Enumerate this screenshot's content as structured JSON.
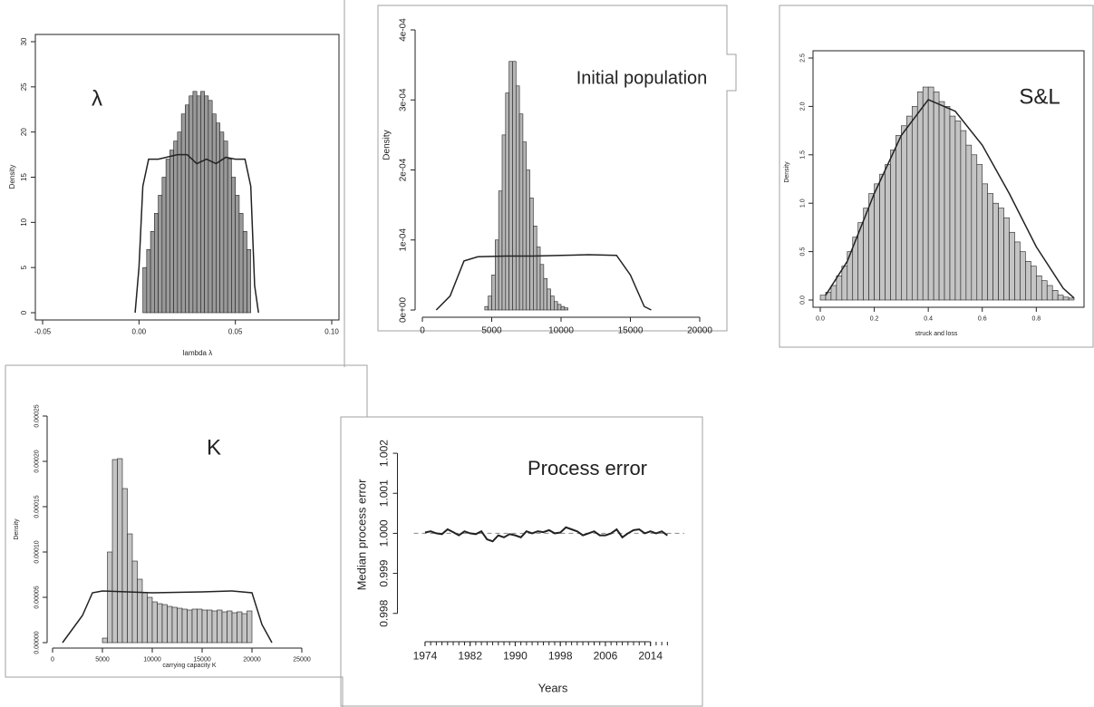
{
  "chart_data": [
    {
      "type": "histogram",
      "title": "λ",
      "x_label": "lambda λ",
      "y_label": "Density",
      "color": "#9a9a9a",
      "frame": true,
      "xlim": [
        -0.05,
        0.1
      ],
      "ylim": [
        0,
        30
      ],
      "xticks": [
        -0.05,
        {
          "value": 0,
          "label": "0.00"
        },
        0.05,
        {
          "value": 0.1,
          "label": "0.10"
        }
      ],
      "yticks": [
        0,
        5,
        10,
        15,
        20,
        25,
        30
      ],
      "bins": [
        0.002,
        0.004,
        0.006,
        0.008,
        0.01,
        0.012,
        0.014,
        0.016,
        0.018,
        0.02,
        0.022,
        0.024,
        0.026,
        0.028,
        0.03,
        0.032,
        0.034,
        0.036,
        0.038,
        0.04,
        0.042,
        0.044,
        0.046,
        0.048,
        0.05,
        0.052,
        0.054,
        0.056,
        0.058
      ],
      "values": [
        5,
        7,
        9,
        11,
        13,
        15,
        17,
        18,
        19,
        20,
        22,
        23,
        24,
        24.5,
        24,
        24.5,
        24,
        23.5,
        22,
        21,
        20,
        19,
        17,
        15,
        13,
        11,
        9,
        7
      ],
      "density_x": [
        -0.002,
        0,
        0.002,
        0.005,
        0.01,
        0.02,
        0.025,
        0.03,
        0.035,
        0.04,
        0.045,
        0.05,
        0.055,
        0.058,
        0.06,
        0.062
      ],
      "density_y": [
        0,
        5,
        14,
        17,
        17,
        17.5,
        17.5,
        16.5,
        17,
        16.5,
        17.2,
        17,
        17,
        14,
        3,
        0
      ]
    },
    {
      "type": "histogram",
      "title": "Initial population",
      "y_label": "Density",
      "color": "#b5b5b5",
      "frame": false,
      "xlim": [
        0,
        20000
      ],
      "ylim": [
        0,
        0.0004
      ],
      "xticks": [
        0,
        5000,
        10000,
        15000,
        20000
      ],
      "yticks": [
        {
          "value": 0,
          "label": "0e+00"
        },
        {
          "value": 0.0001,
          "label": "1e-04"
        },
        {
          "value": 0.0002,
          "label": "2e-04"
        },
        {
          "value": 0.0003,
          "label": "3e-04"
        },
        {
          "value": 0.0004,
          "label": "4e-04"
        }
      ],
      "bins": [
        4500,
        4750,
        5000,
        5250,
        5500,
        5750,
        6000,
        6250,
        6500,
        6750,
        7000,
        7250,
        7500,
        7750,
        8000,
        8250,
        8500,
        8750,
        9000,
        9250,
        9500,
        9750,
        10000,
        10250,
        10500
      ],
      "values": [
        5e-06,
        2e-05,
        5e-05,
        0.0001,
        0.00017,
        0.00025,
        0.00031,
        0.000355,
        0.000355,
        0.00032,
        0.00028,
        0.00024,
        0.0002,
        0.00016,
        0.00012,
        9e-05,
        6.5e-05,
        4.5e-05,
        3e-05,
        2e-05,
        1.2e-05,
        8e-06,
        5e-06,
        3e-06
      ],
      "density_x": [
        1000,
        2000,
        3000,
        4000,
        6000,
        8000,
        10000,
        12000,
        14000,
        15000,
        16000,
        16500
      ],
      "density_y": [
        0,
        2e-05,
        7e-05,
        7.6e-05,
        7.7e-05,
        7.7e-05,
        7.8e-05,
        7.9e-05,
        7.8e-05,
        5e-05,
        5e-06,
        0
      ]
    },
    {
      "type": "histogram",
      "title": "S&L",
      "x_label": "struck and loss",
      "y_label": "Density",
      "color": "#c4c4c4",
      "frame": true,
      "xlim": [
        0,
        0.95
      ],
      "ylim": [
        0,
        2.5
      ],
      "xticks": [
        {
          "value": 0,
          "label": "0.0"
        },
        0.2,
        0.4,
        0.6,
        0.8
      ],
      "yticks": [
        {
          "value": 0,
          "label": "0.0"
        },
        0.5,
        {
          "value": 1,
          "label": "1.0"
        },
        1.5,
        {
          "value": 2,
          "label": "2.0"
        },
        2.5
      ],
      "bins": [
        0,
        0.02,
        0.04,
        0.06,
        0.08,
        0.1,
        0.12,
        0.14,
        0.16,
        0.18,
        0.2,
        0.22,
        0.24,
        0.26,
        0.28,
        0.3,
        0.32,
        0.34,
        0.36,
        0.38,
        0.4,
        0.42,
        0.44,
        0.46,
        0.48,
        0.5,
        0.52,
        0.54,
        0.56,
        0.58,
        0.6,
        0.62,
        0.64,
        0.66,
        0.68,
        0.7,
        0.72,
        0.74,
        0.76,
        0.78,
        0.8,
        0.82,
        0.84,
        0.86,
        0.88,
        0.9,
        0.92,
        0.94
      ],
      "values": [
        0.05,
        0.08,
        0.15,
        0.25,
        0.35,
        0.5,
        0.65,
        0.8,
        0.95,
        1.1,
        1.2,
        1.3,
        1.4,
        1.55,
        1.7,
        1.8,
        1.9,
        2.0,
        2.15,
        2.2,
        2.2,
        2.15,
        2.05,
        2.0,
        1.9,
        1.85,
        1.75,
        1.6,
        1.5,
        1.4,
        1.2,
        1.1,
        1.0,
        0.95,
        0.85,
        0.7,
        0.6,
        0.5,
        0.4,
        0.35,
        0.25,
        0.2,
        0.15,
        0.1,
        0.05,
        0.03,
        0.02
      ],
      "density_x": [
        0.02,
        0.1,
        0.2,
        0.3,
        0.4,
        0.5,
        0.6,
        0.7,
        0.8,
        0.9,
        0.94
      ],
      "density_y": [
        0.05,
        0.4,
        1.1,
        1.7,
        2.07,
        1.95,
        1.6,
        1.1,
        0.55,
        0.12,
        0.02
      ]
    },
    {
      "type": "histogram",
      "title": "K",
      "x_label": "carrying capacity K",
      "y_label": "Density",
      "color": "#c4c4c4",
      "frame": false,
      "xlim": [
        0,
        25000
      ],
      "ylim": [
        0,
        0.00025
      ],
      "xticks": [
        0,
        5000,
        10000,
        15000,
        20000,
        25000
      ],
      "yticks": [
        {
          "value": 0,
          "label": "0.00000"
        },
        {
          "value": 5e-05,
          "label": "0.00005"
        },
        {
          "value": 0.0001,
          "label": "0.00010"
        },
        {
          "value": 0.00015,
          "label": "0.00015"
        },
        {
          "value": 0.0002,
          "label": "0.00020"
        },
        {
          "value": 0.00025,
          "label": "0.00025"
        }
      ],
      "bins": [
        5000,
        5500,
        6000,
        6500,
        7000,
        7500,
        8000,
        8500,
        9000,
        9500,
        10000,
        10500,
        11000,
        11500,
        12000,
        12500,
        13000,
        13500,
        14000,
        14500,
        15000,
        15500,
        16000,
        16500,
        17000,
        17500,
        18000,
        18500,
        19000,
        19500,
        20000
      ],
      "values": [
        5e-06,
        0.0001,
        0.000202,
        0.000203,
        0.00017,
        0.00012,
        9e-05,
        7e-05,
        5.5e-05,
        5e-05,
        4.5e-05,
        4.3e-05,
        4.2e-05,
        4e-05,
        3.9e-05,
        3.8e-05,
        3.7e-05,
        3.6e-05,
        3.7e-05,
        3.7e-05,
        3.6e-05,
        3.6e-05,
        3.5e-05,
        3.6e-05,
        3.4e-05,
        3.5e-05,
        3.3e-05,
        3.4e-05,
        3.2e-05,
        3.5e-05
      ],
      "density_x": [
        1000,
        3000,
        4000,
        5000,
        10000,
        15000,
        18000,
        20000,
        21000,
        22000
      ],
      "density_y": [
        0,
        3e-05,
        5.5e-05,
        5.7e-05,
        5.5e-05,
        5.6e-05,
        5.7e-05,
        5.5e-05,
        2e-05,
        0
      ]
    },
    {
      "type": "line",
      "title": "Process error",
      "x_label": "Years",
      "y_label": "Median process error",
      "color": "#222222",
      "frame": false,
      "hline": 1.0,
      "xlim": [
        1972,
        2020
      ],
      "ylim": [
        0.9977,
        1.0025
      ],
      "xticks": [
        1974,
        1982,
        1990,
        1998,
        2006,
        2014
      ],
      "yticks": [
        0.998,
        0.999,
        {
          "value": 1,
          "label": "1.000"
        },
        1.001,
        1.002
      ],
      "x": [
        1974,
        1975,
        1976,
        1977,
        1978,
        1979,
        1980,
        1981,
        1982,
        1983,
        1984,
        1985,
        1986,
        1987,
        1988,
        1989,
        1990,
        1991,
        1992,
        1993,
        1994,
        1995,
        1996,
        1997,
        1998,
        1999,
        2000,
        2001,
        2002,
        2003,
        2004,
        2005,
        2006,
        2007,
        2008,
        2009,
        2010,
        2011,
        2012,
        2013,
        2014,
        2015,
        2016,
        2017
      ],
      "values": [
        1.00002,
        1.00005,
        1.0,
        0.99998,
        1.0001,
        1.00003,
        0.99995,
        1.00005,
        1.0,
        0.99998,
        1.00005,
        0.99985,
        0.9998,
        0.99995,
        0.9999,
        0.99998,
        0.99995,
        0.9999,
        1.00005,
        1.0,
        1.00005,
        1.00003,
        1.00008,
        1.0,
        1.00002,
        1.00015,
        1.0001,
        1.00005,
        0.99995,
        1.0,
        1.00005,
        0.99995,
        0.99995,
        1.0,
        1.0001,
        0.9999,
        1.0,
        1.00008,
        1.0001,
        1.0,
        1.00005,
        1.0,
        1.00005,
        0.99995
      ]
    }
  ]
}
